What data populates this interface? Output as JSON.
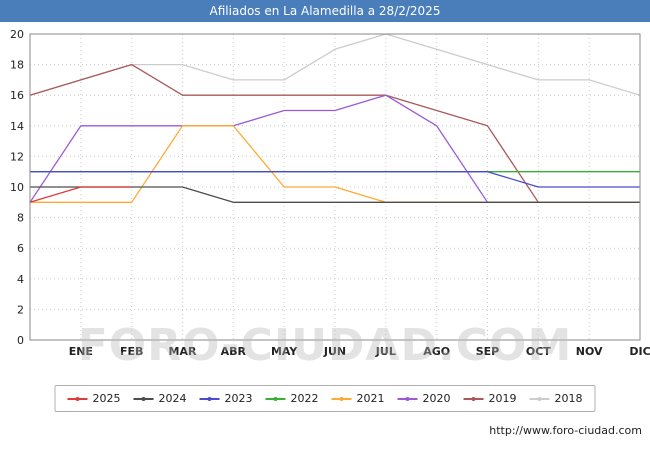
{
  "header": {
    "title": "Afiliados en La Alamedilla a 28/2/2025",
    "bg_color": "#4a7ebb",
    "text_color": "#ffffff"
  },
  "watermark_text": "FORO-CIUDAD.COM",
  "footer": {
    "url_label": "http://www.foro-ciudad.com"
  },
  "chart_data": {
    "type": "line",
    "title": "Afiliados en La Alamedilla a 28/2/2025",
    "xlabel": "",
    "ylabel": "",
    "x_categories": [
      "ENE",
      "FEB",
      "MAR",
      "ABR",
      "MAY",
      "JUN",
      "JUL",
      "AGO",
      "SEP",
      "OCT",
      "NOV",
      "DIC"
    ],
    "ylim": [
      0,
      20
    ],
    "yticks": [
      0,
      2,
      4,
      6,
      8,
      10,
      12,
      14,
      16,
      18,
      20
    ],
    "grid": true,
    "legend_position": "bottom",
    "series": [
      {
        "name": "2025",
        "color": "#e03a3a",
        "start": 9,
        "values": [
          10,
          10,
          null,
          null,
          null,
          null,
          null,
          null,
          null,
          null,
          null,
          null
        ]
      },
      {
        "name": "2024",
        "color": "#4d4d4d",
        "start": 10,
        "values": [
          10,
          10,
          10,
          9,
          9,
          9,
          9,
          9,
          9,
          9,
          9,
          9
        ]
      },
      {
        "name": "2023",
        "color": "#4b4bd0",
        "start": 11,
        "values": [
          11,
          11,
          11,
          11,
          11,
          11,
          11,
          11,
          11,
          10,
          10,
          10
        ]
      },
      {
        "name": "2022",
        "color": "#35b135",
        "start": 11,
        "values": [
          11,
          11,
          11,
          11,
          11,
          11,
          11,
          11,
          11,
          11,
          11,
          11
        ]
      },
      {
        "name": "2021",
        "color": "#ffaa33",
        "start": 9,
        "values": [
          9,
          9,
          14,
          14,
          10,
          10,
          9,
          9,
          9,
          9,
          9,
          9
        ]
      },
      {
        "name": "2020",
        "color": "#9b59d6",
        "start": 9,
        "values": [
          14,
          14,
          14,
          14,
          15,
          15,
          16,
          14,
          9,
          9,
          9,
          9
        ]
      },
      {
        "name": "2019",
        "color": "#aa5858",
        "start": 16,
        "values": [
          17,
          18,
          16,
          16,
          16,
          16,
          16,
          15,
          14,
          9,
          9,
          9
        ]
      },
      {
        "name": "2018",
        "color": "#cccccc",
        "start": 16,
        "values": [
          17,
          18,
          18,
          17,
          17,
          19,
          20,
          19,
          18,
          17,
          17,
          16
        ]
      }
    ]
  }
}
